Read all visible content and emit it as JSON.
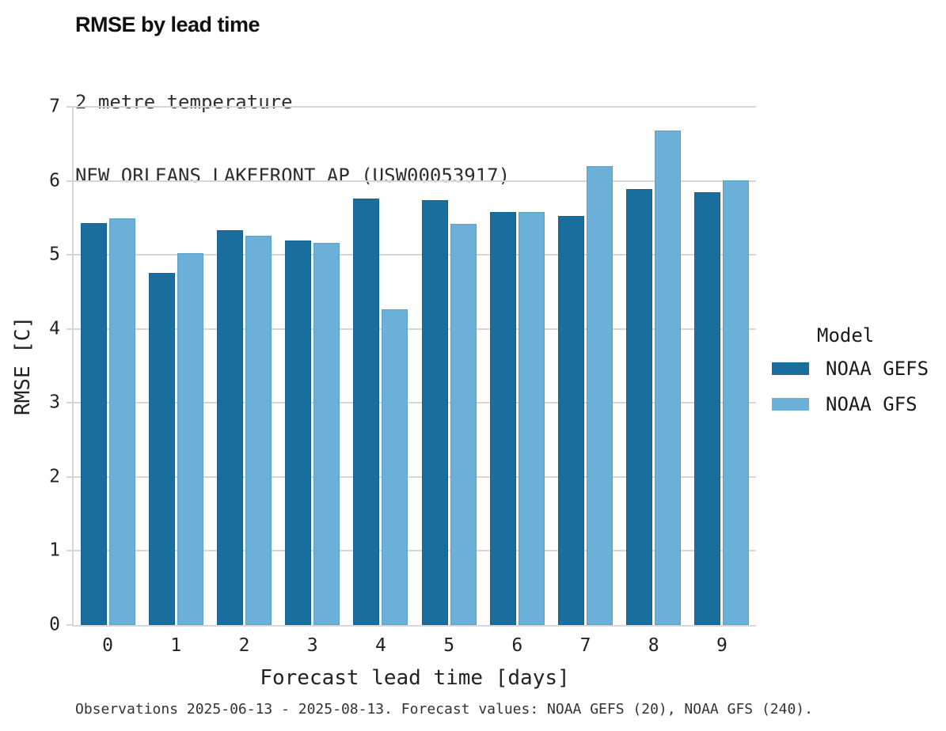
{
  "chart_data": {
    "type": "bar",
    "title": "RMSE by lead time",
    "subtitle": [
      "2 metre temperature",
      "NEW ORLEANS LAKEFRONT AP (USW00053917)"
    ],
    "categories": [
      "0",
      "1",
      "2",
      "3",
      "4",
      "5",
      "6",
      "7",
      "8",
      "9"
    ],
    "series": [
      {
        "name": "NOAA GEFS",
        "color": "#1a6e9e",
        "values": [
          5.43,
          4.76,
          5.33,
          5.19,
          5.76,
          5.74,
          5.58,
          5.53,
          5.89,
          5.85
        ]
      },
      {
        "name": "NOAA GFS",
        "color": "#6bb0d9",
        "values": [
          5.49,
          5.02,
          5.26,
          5.16,
          4.26,
          5.42,
          5.58,
          6.2,
          6.68,
          6.01
        ]
      }
    ],
    "xlabel": "Forecast lead time [days]",
    "ylabel": "RMSE [C]",
    "ylim": [
      0,
      7
    ],
    "yticks": [
      0,
      1,
      2,
      3,
      4,
      5,
      6,
      7
    ],
    "grid": "horizontal",
    "legend_title": "Model",
    "legend_position": "right",
    "footnote": "Observations 2025-06-13 - 2025-08-13. Forecast values: NOAA GEFS (20), NOAA GFS (240).",
    "colors": {
      "gridline": "#d6d6d6",
      "text": "#222222",
      "subtitle_text": "#2e2e2e"
    }
  }
}
